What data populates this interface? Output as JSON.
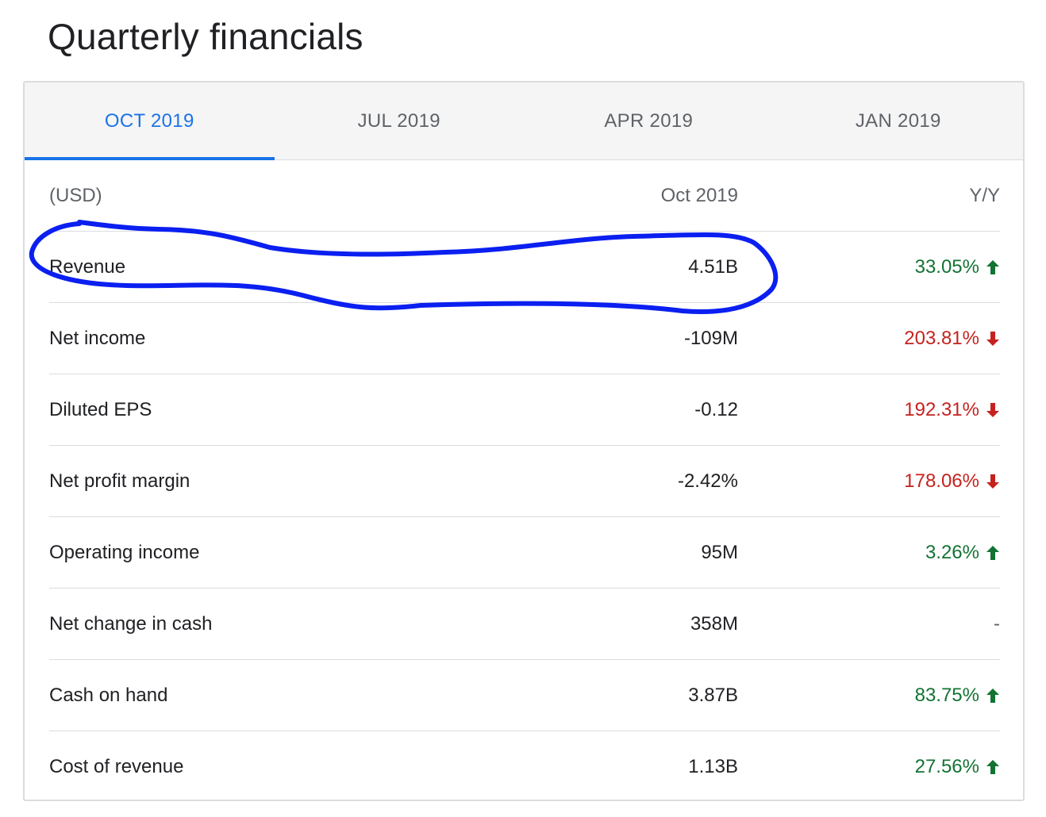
{
  "page": {
    "title": "Quarterly financials"
  },
  "tabs": [
    {
      "label": "OCT 2019",
      "active": true
    },
    {
      "label": "JUL 2019",
      "active": false
    },
    {
      "label": "APR 2019",
      "active": false
    },
    {
      "label": "JAN 2019",
      "active": false
    }
  ],
  "table": {
    "header": {
      "label": "(USD)",
      "value": "Oct 2019",
      "yoy": "Y/Y"
    },
    "rows": [
      {
        "label": "Revenue",
        "value": "4.51B",
        "yoy": "33.05%",
        "trend": "up"
      },
      {
        "label": "Net income",
        "value": "-109M",
        "yoy": "203.81%",
        "trend": "down"
      },
      {
        "label": "Diluted EPS",
        "value": "-0.12",
        "yoy": "192.31%",
        "trend": "down"
      },
      {
        "label": "Net profit margin",
        "value": "-2.42%",
        "yoy": "178.06%",
        "trend": "down"
      },
      {
        "label": "Operating income",
        "value": "95M",
        "yoy": "3.26%",
        "trend": "up"
      },
      {
        "label": "Net change in cash",
        "value": "358M",
        "yoy": "-",
        "trend": "none"
      },
      {
        "label": "Cash on hand",
        "value": "3.87B",
        "yoy": "83.75%",
        "trend": "up"
      },
      {
        "label": "Cost of revenue",
        "value": "1.13B",
        "yoy": "27.56%",
        "trend": "up"
      }
    ]
  },
  "icons": {
    "up": "arrow-up-icon",
    "down": "arrow-down-icon"
  },
  "colors": {
    "accent": "#1a73e8",
    "up": "#137333",
    "down": "#c5221f",
    "annotation": "#0a1ff0"
  }
}
